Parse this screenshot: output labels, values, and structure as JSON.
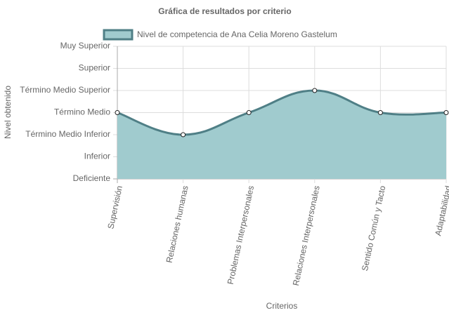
{
  "chart_data": {
    "type": "line",
    "title": "Gráfica de resultados por criterio",
    "x_label": "Criterios",
    "y_label": "Nivel obtenido",
    "categories": [
      "Supervisión",
      "Relaciones humanas",
      "Problemas Interpersonales",
      "Relaciones Interpersonales",
      "Sentido Común y Tacto",
      "Adaptabilidad"
    ],
    "series": [
      {
        "name": "Nivel de competencia de Ana Celia Moreno Gastelum",
        "color": "#4f7f86",
        "fill": "#a0cbce",
        "values": [
          4,
          3,
          4,
          5,
          4,
          4
        ]
      }
    ],
    "ylim": [
      1,
      7
    ],
    "yticks": [
      {
        "value": 1,
        "label": "Deficiente"
      },
      {
        "value": 2,
        "label": "Inferior"
      },
      {
        "value": 3,
        "label": "Término Medio Inferior"
      },
      {
        "value": 4,
        "label": "Término Medio"
      },
      {
        "value": 5,
        "label": "Término Medio Superior"
      },
      {
        "value": 6,
        "label": "Superior"
      },
      {
        "value": 7,
        "label": "Muy Superior"
      }
    ],
    "grid": true,
    "legend": "top"
  }
}
